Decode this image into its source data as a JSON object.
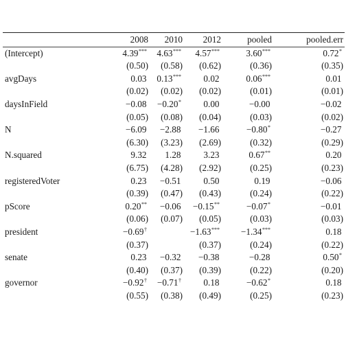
{
  "table": {
    "header": {
      "label": "",
      "columns": [
        "2008",
        "2010",
        "2012",
        "pooled",
        "pooled.err"
      ]
    },
    "rows": [
      {
        "label": "(Intercept)",
        "estimates": [
          {
            "v": "4.39",
            "s": "***"
          },
          {
            "v": "4.63",
            "s": "***"
          },
          {
            "v": "4.57",
            "s": "***"
          },
          {
            "v": "3.60",
            "s": "***"
          },
          {
            "v": "0.72",
            "s": "*"
          }
        ],
        "errors": [
          "(0.50)",
          "(0.58)",
          "(0.62)",
          "(0.36)",
          "(0.35)"
        ]
      },
      {
        "label": "avgDays",
        "estimates": [
          {
            "v": "0.03",
            "s": ""
          },
          {
            "v": "0.13",
            "s": "***"
          },
          {
            "v": "0.02",
            "s": ""
          },
          {
            "v": "0.06",
            "s": "***"
          },
          {
            "v": "0.01",
            "s": ""
          }
        ],
        "errors": [
          "(0.02)",
          "(0.02)",
          "(0.02)",
          "(0.01)",
          "(0.01)"
        ]
      },
      {
        "label": "daysInField",
        "estimates": [
          {
            "v": "−0.08",
            "s": ""
          },
          {
            "v": "−0.20",
            "s": "*"
          },
          {
            "v": "0.00",
            "s": ""
          },
          {
            "v": "−0.00",
            "s": ""
          },
          {
            "v": "−0.02",
            "s": ""
          }
        ],
        "errors": [
          "(0.05)",
          "(0.08)",
          "(0.04)",
          "(0.03)",
          "(0.02)"
        ]
      },
      {
        "label": "N",
        "estimates": [
          {
            "v": "−6.09",
            "s": ""
          },
          {
            "v": "−2.88",
            "s": ""
          },
          {
            "v": "−1.66",
            "s": ""
          },
          {
            "v": "−0.80",
            "s": "*"
          },
          {
            "v": "−0.27",
            "s": ""
          }
        ],
        "errors": [
          "(6.30)",
          "(3.23)",
          "(2.69)",
          "(0.32)",
          "(0.29)"
        ]
      },
      {
        "label": "N.squared",
        "estimates": [
          {
            "v": "9.32",
            "s": ""
          },
          {
            "v": "1.28",
            "s": ""
          },
          {
            "v": "3.23",
            "s": ""
          },
          {
            "v": "0.67",
            "s": "**"
          },
          {
            "v": "0.20",
            "s": ""
          }
        ],
        "errors": [
          "(6.75)",
          "(4.28)",
          "(2.92)",
          "(0.25)",
          "(0.23)"
        ]
      },
      {
        "label": "registeredVoter",
        "estimates": [
          {
            "v": "0.23",
            "s": ""
          },
          {
            "v": "−0.51",
            "s": ""
          },
          {
            "v": "0.50",
            "s": ""
          },
          {
            "v": "0.19",
            "s": ""
          },
          {
            "v": "−0.06",
            "s": ""
          }
        ],
        "errors": [
          "(0.39)",
          "(0.47)",
          "(0.43)",
          "(0.24)",
          "(0.22)"
        ]
      },
      {
        "label": "pScore",
        "estimates": [
          {
            "v": "0.20",
            "s": "**"
          },
          {
            "v": "−0.06",
            "s": ""
          },
          {
            "v": "−0.15",
            "s": "**"
          },
          {
            "v": "−0.07",
            "s": "*"
          },
          {
            "v": "−0.01",
            "s": ""
          }
        ],
        "errors": [
          "(0.06)",
          "(0.07)",
          "(0.05)",
          "(0.03)",
          "(0.03)"
        ]
      },
      {
        "label": "president",
        "estimates": [
          {
            "v": "−0.69",
            "s": "†"
          },
          {
            "v": "",
            "s": ""
          },
          {
            "v": "−1.63",
            "s": "***"
          },
          {
            "v": "−1.34",
            "s": "***"
          },
          {
            "v": "0.18",
            "s": ""
          }
        ],
        "errors": [
          "(0.37)",
          "",
          "(0.37)",
          "(0.24)",
          "(0.22)"
        ]
      },
      {
        "label": "senate",
        "estimates": [
          {
            "v": "0.23",
            "s": ""
          },
          {
            "v": "−0.32",
            "s": ""
          },
          {
            "v": "−0.38",
            "s": ""
          },
          {
            "v": "−0.28",
            "s": ""
          },
          {
            "v": "0.50",
            "s": "*"
          }
        ],
        "errors": [
          "(0.40)",
          "(0.37)",
          "(0.39)",
          "(0.22)",
          "(0.20)"
        ]
      },
      {
        "label": "governor",
        "estimates": [
          {
            "v": "−0.92",
            "s": "†"
          },
          {
            "v": "−0.71",
            "s": "†"
          },
          {
            "v": "0.18",
            "s": ""
          },
          {
            "v": "−0.62",
            "s": "*"
          },
          {
            "v": "0.18",
            "s": ""
          }
        ],
        "errors": [
          "(0.55)",
          "(0.38)",
          "(0.49)",
          "(0.25)",
          "(0.23)"
        ]
      }
    ]
  }
}
